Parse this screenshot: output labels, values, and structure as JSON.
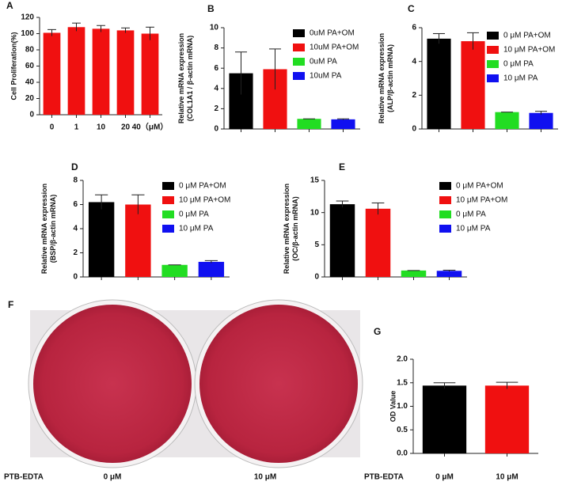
{
  "chart_data": [
    {
      "type": "bar",
      "label": "A",
      "ylabel": [
        "Cell Proliferation(%)"
      ],
      "categories": [
        "0",
        "1",
        "10",
        "20",
        "40（μM）"
      ],
      "values": [
        101,
        108,
        106,
        104,
        100
      ],
      "errors": [
        4,
        5,
        4,
        3,
        8
      ],
      "colors": [
        "#f01010",
        "#f01010",
        "#f01010",
        "#f01010",
        "#f01010"
      ],
      "ylim": [
        0,
        120
      ],
      "yticks": [
        0,
        20,
        40,
        60,
        80,
        100,
        120
      ]
    },
    {
      "type": "bar",
      "label": "B",
      "ylabel": [
        "Relative mRNA expression",
        "(COL1A1 / β-actin mRNA)"
      ],
      "categories": [
        null,
        null,
        null,
        null
      ],
      "values": [
        5.5,
        5.9,
        1.0,
        0.95
      ],
      "errors": [
        2.1,
        2.0,
        0,
        0.05
      ],
      "colors": [
        "#000000",
        "#f01010",
        "#22dd22",
        "#1010f0"
      ],
      "legend": [
        "0uM PA+OM",
        "10uM PA+OM",
        "0uM PA",
        "10uM PA"
      ],
      "ylim": [
        0,
        10
      ],
      "yticks": [
        0,
        2,
        4,
        6,
        8,
        10
      ]
    },
    {
      "type": "bar",
      "label": "C",
      "ylabel": [
        "Relative mRNA expression",
        "(ALP/β-actin mRNA)"
      ],
      "categories": [
        null,
        null,
        null,
        null
      ],
      "values": [
        5.35,
        5.2,
        1.0,
        0.95
      ],
      "errors": [
        0.3,
        0.5,
        0,
        0.1
      ],
      "colors": [
        "#000000",
        "#f01010",
        "#22dd22",
        "#1010f0"
      ],
      "legend": [
        "0 μM PA+OM",
        "10 μM PA+OM",
        "0 μM PA",
        "10 μM PA"
      ],
      "ylim": [
        0,
        6
      ],
      "yticks": [
        0,
        2,
        4,
        6
      ]
    },
    {
      "type": "bar",
      "label": "D",
      "ylabel": [
        "Relative mRNA expression",
        "(BSP/β-actin mRNA)"
      ],
      "categories": [
        null,
        null,
        null,
        null
      ],
      "values": [
        6.2,
        6.0,
        1.0,
        1.25
      ],
      "errors": [
        0.6,
        0.8,
        0,
        0.1
      ],
      "colors": [
        "#000000",
        "#f01010",
        "#22dd22",
        "#1010f0"
      ],
      "legend": [
        "0 μM PA+OM",
        "10 μM PA+OM",
        "0 μM PA",
        "10 μM PA"
      ],
      "ylim": [
        0,
        8
      ],
      "yticks": [
        0,
        2,
        4,
        6,
        8
      ]
    },
    {
      "type": "bar",
      "label": "E",
      "ylabel": [
        "Relative mRNA expression",
        "(OC/β-actin mRNA)"
      ],
      "categories": [
        null,
        null,
        null,
        null
      ],
      "values": [
        11.3,
        10.6,
        1.0,
        0.95
      ],
      "errors": [
        0.5,
        0.9,
        0,
        0.1
      ],
      "colors": [
        "#000000",
        "#f01010",
        "#22dd22",
        "#1010f0"
      ],
      "legend": [
        "0 μM PA+OM",
        "10 μM PA+OM",
        "0 μM PA",
        "10 μM PA"
      ],
      "ylim": [
        0,
        15
      ],
      "yticks": [
        0,
        5,
        10,
        15
      ]
    },
    {
      "type": "bar",
      "label": "G",
      "ylabel": [
        "OD Value"
      ],
      "xlabel": "PTB-EDTA",
      "categories": [
        "0 μM",
        "10 μM"
      ],
      "values": [
        1.44,
        1.44
      ],
      "errors": [
        0.06,
        0.07
      ],
      "colors": [
        "#000000",
        "#f01010"
      ],
      "ylim": [
        0,
        2
      ],
      "yticks": [
        {
          "value": 0,
          "label": "0.0"
        },
        {
          "value": 0.5,
          "label": "0.5"
        },
        {
          "value": 1,
          "label": "1.0"
        },
        {
          "value": 1.5,
          "label": "1.5"
        },
        {
          "value": 2,
          "label": "2.0"
        }
      ]
    }
  ],
  "photo": {
    "label": "F",
    "xlabel": "PTB-EDTA",
    "categories": [
      "0 μM",
      "10 μM"
    ]
  }
}
